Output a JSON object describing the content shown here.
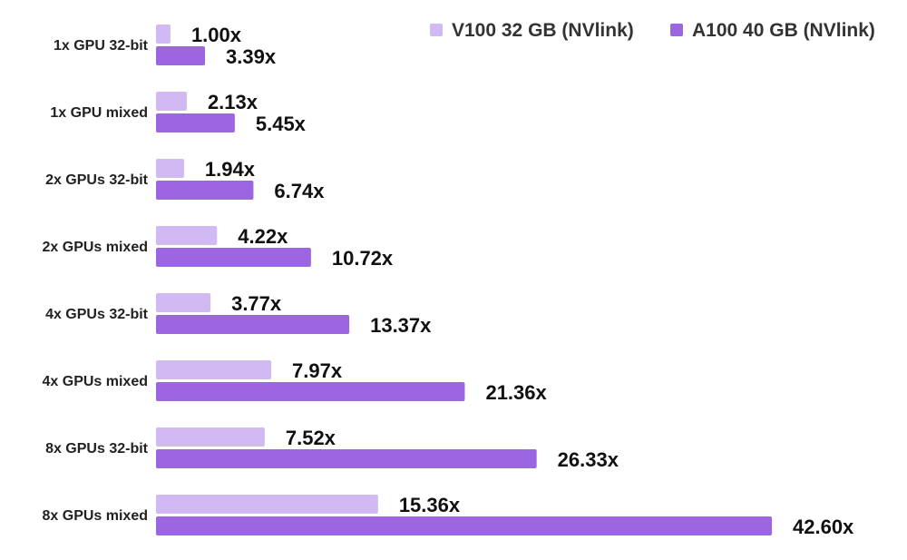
{
  "chart_data": {
    "type": "bar",
    "orientation": "horizontal",
    "categories": [
      "1x GPU 32-bit",
      "1x GPU mixed",
      "2x GPUs 32-bit",
      "2x GPUs mixed",
      "4x GPUs 32-bit",
      "4x GPUs mixed",
      "8x GPUs 32-bit",
      "8x GPUs mixed"
    ],
    "series": [
      {
        "name": "V100 32 GB (NVlink)",
        "color": "#d1b9f3",
        "values": [
          1.0,
          2.13,
          1.94,
          4.22,
          3.77,
          7.97,
          7.52,
          15.36
        ],
        "labels": [
          "1.00x",
          "2.13x",
          "1.94x",
          "4.22x",
          "3.77x",
          "7.97x",
          "7.52x",
          "15.36x"
        ]
      },
      {
        "name": "A100 40 GB (NVlink)",
        "color": "#9c66e3",
        "values": [
          3.39,
          5.45,
          6.74,
          10.72,
          13.37,
          21.36,
          26.33,
          42.6
        ],
        "labels": [
          "3.39x",
          "5.45x",
          "6.74x",
          "10.72x",
          "13.37x",
          "21.36x",
          "26.33x",
          "42.60x"
        ]
      }
    ],
    "xlim": [
      0,
      42.6
    ],
    "grid": false,
    "legend": "top-right"
  }
}
